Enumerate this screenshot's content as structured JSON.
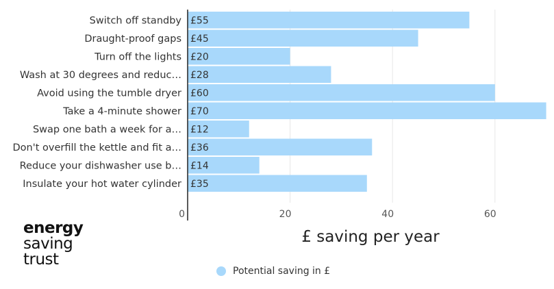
{
  "chart_data": {
    "type": "bar",
    "orientation": "horizontal",
    "categories": [
      "Switch off standby",
      "Draught-proof gaps",
      "Turn off the lights",
      "Wash at 30 degrees and reduc…",
      "Avoid using the tumble dryer",
      "Take a 4-minute shower",
      "Swap one bath a week for a…",
      "Don't overfill the kettle and fit a…",
      "Reduce your dishwasher use b…",
      "Insulate your hot water cylinder"
    ],
    "series": [
      {
        "name": "Potential saving in £",
        "values": [
          55,
          45,
          20,
          28,
          60,
          70,
          12,
          36,
          14,
          35
        ],
        "data_labels": [
          "£55",
          "£45",
          "£20",
          "£28",
          "£60",
          "£70",
          "£12",
          "£36",
          "£14",
          "£35"
        ]
      }
    ],
    "xlabel": "£ saving per year",
    "xlim": [
      0,
      70
    ],
    "xticks": [
      0,
      20,
      40,
      60
    ],
    "grid": true,
    "legend_position": "bottom",
    "bar_color": "#a8d8fb"
  },
  "logo": {
    "line1": "energy",
    "line2": "saving",
    "line3": "trust"
  },
  "legend": {
    "label": "Potential saving in £",
    "color": "#a8d8fb"
  }
}
